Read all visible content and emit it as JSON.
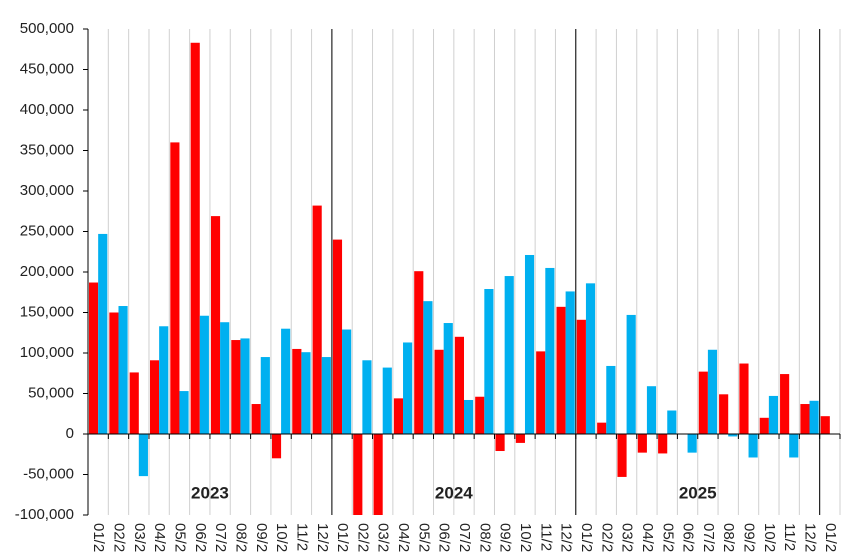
{
  "chart_data": {
    "type": "bar",
    "categories": [
      "01/2",
      "02/2",
      "03/2",
      "04/2",
      "05/2",
      "06/2",
      "07/2",
      "08/2",
      "09/2",
      "10/2",
      "11/2",
      "12/2",
      "01/2",
      "02/2",
      "03/2",
      "04/2",
      "05/2",
      "06/2",
      "07/2",
      "08/2",
      "09/2",
      "10/2",
      "11/2",
      "12/2",
      "01/2",
      "02/2",
      "03/2",
      "04/2",
      "05/2",
      "06/2",
      "07/2",
      "08/2",
      "09/2",
      "10/2",
      "11/2",
      "12/2",
      "01/2"
    ],
    "series": [
      {
        "color": "#ff0000",
        "values": [
          187000,
          150000,
          76000,
          91000,
          360000,
          483000,
          269000,
          116000,
          37000,
          -30000,
          105000,
          282000,
          240000,
          -110000,
          -110000,
          44000,
          201000,
          104000,
          120000,
          46000,
          -21000,
          -11000,
          102000,
          157000,
          141000,
          14000,
          -53000,
          -23000,
          -24000,
          0,
          77000,
          49000,
          87000,
          20000,
          74000,
          37000,
          22000
        ]
      },
      {
        "color": "#00b0f0",
        "values": [
          247000,
          158000,
          -52000,
          133000,
          53000,
          146000,
          138000,
          118000,
          95000,
          130000,
          101000,
          95000,
          129000,
          91000,
          82000,
          113000,
          164000,
          137000,
          42000,
          179000,
          195000,
          221000,
          205000,
          176000,
          186000,
          84000,
          147000,
          59000,
          29000,
          -23000,
          104000,
          -3000,
          -29000,
          47000,
          -29000,
          41000,
          null
        ]
      }
    ],
    "annotations": [
      "2023",
      "2024",
      "2025"
    ],
    "ylim": [
      -100000,
      500000
    ],
    "yticks": [
      {
        "value": -100000,
        "label": "-100,000"
      },
      {
        "value": -50000,
        "label": "-50,000"
      },
      0,
      {
        "value": 50000,
        "label": "50,000"
      },
      {
        "value": 100000,
        "label": "100,000"
      },
      {
        "value": 150000,
        "label": "150,000"
      },
      {
        "value": 200000,
        "label": "200,000"
      },
      {
        "value": 250000,
        "label": "250,000"
      },
      {
        "value": 300000,
        "label": "300,000"
      },
      {
        "value": 350000,
        "label": "350,000"
      },
      {
        "value": 400000,
        "label": "400,000"
      },
      {
        "value": 450000,
        "label": "450,000"
      },
      {
        "value": 500000,
        "label": "500,000"
      }
    ],
    "grid": true
  }
}
